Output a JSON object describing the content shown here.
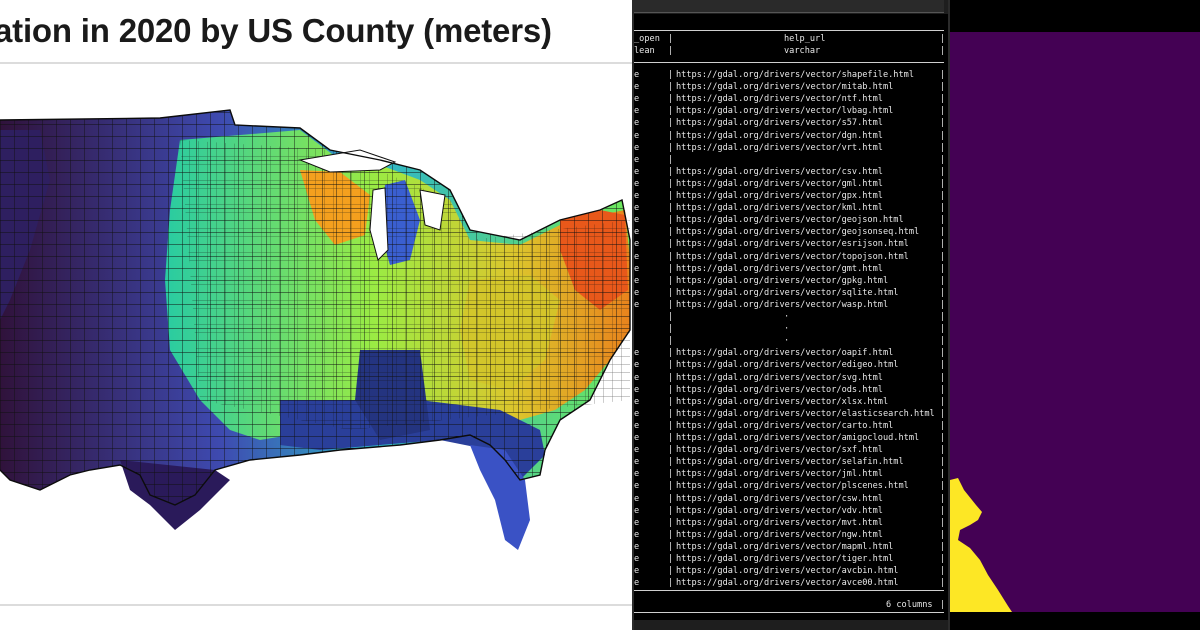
{
  "map": {
    "title": "ation in 2020 by US County (meters)"
  },
  "terminal": {
    "header_col1_line1": "_open",
    "header_col1_line2": "lean",
    "header_col2_line1": "help_url",
    "header_col2_line2": "varchar",
    "rows": [
      {
        "flag": "e",
        "url": "https://gdal.org/drivers/vector/shapefile.html"
      },
      {
        "flag": "e",
        "url": "https://gdal.org/drivers/vector/mitab.html"
      },
      {
        "flag": "e",
        "url": "https://gdal.org/drivers/vector/ntf.html"
      },
      {
        "flag": "e",
        "url": "https://gdal.org/drivers/vector/lvbag.html"
      },
      {
        "flag": "e",
        "url": "https://gdal.org/drivers/vector/s57.html"
      },
      {
        "flag": "e",
        "url": "https://gdal.org/drivers/vector/dgn.html"
      },
      {
        "flag": "e",
        "url": "https://gdal.org/drivers/vector/vrt.html"
      },
      {
        "flag": "e",
        "url": ""
      },
      {
        "flag": "e",
        "url": "https://gdal.org/drivers/vector/csv.html"
      },
      {
        "flag": "e",
        "url": "https://gdal.org/drivers/vector/gml.html"
      },
      {
        "flag": "e",
        "url": "https://gdal.org/drivers/vector/gpx.html"
      },
      {
        "flag": "e",
        "url": "https://gdal.org/drivers/vector/kml.html"
      },
      {
        "flag": "e",
        "url": "https://gdal.org/drivers/vector/geojson.html"
      },
      {
        "flag": "e",
        "url": "https://gdal.org/drivers/vector/geojsonseq.html"
      },
      {
        "flag": "e",
        "url": "https://gdal.org/drivers/vector/esrijson.html"
      },
      {
        "flag": "e",
        "url": "https://gdal.org/drivers/vector/topojson.html"
      },
      {
        "flag": "e",
        "url": "https://gdal.org/drivers/vector/gmt.html"
      },
      {
        "flag": "e",
        "url": "https://gdal.org/drivers/vector/gpkg.html"
      },
      {
        "flag": "e",
        "url": "https://gdal.org/drivers/vector/sqlite.html"
      },
      {
        "flag": "e",
        "url": "https://gdal.org/drivers/vector/wasp.html"
      },
      {
        "flag": "",
        "url": "·"
      },
      {
        "flag": "",
        "url": "·"
      },
      {
        "flag": "",
        "url": "·"
      },
      {
        "flag": "e",
        "url": "https://gdal.org/drivers/vector/oapif.html"
      },
      {
        "flag": "e",
        "url": "https://gdal.org/drivers/vector/edigeo.html"
      },
      {
        "flag": "e",
        "url": "https://gdal.org/drivers/vector/svg.html"
      },
      {
        "flag": "e",
        "url": "https://gdal.org/drivers/vector/ods.html"
      },
      {
        "flag": "e",
        "url": "https://gdal.org/drivers/vector/xlsx.html"
      },
      {
        "flag": "e",
        "url": "https://gdal.org/drivers/vector/elasticsearch.html"
      },
      {
        "flag": "e",
        "url": "https://gdal.org/drivers/vector/carto.html"
      },
      {
        "flag": "e",
        "url": "https://gdal.org/drivers/vector/amigocloud.html"
      },
      {
        "flag": "e",
        "url": "https://gdal.org/drivers/vector/sxf.html"
      },
      {
        "flag": "e",
        "url": "https://gdal.org/drivers/vector/selafin.html"
      },
      {
        "flag": "e",
        "url": "https://gdal.org/drivers/vector/jml.html"
      },
      {
        "flag": "e",
        "url": "https://gdal.org/drivers/vector/plscenes.html"
      },
      {
        "flag": "e",
        "url": "https://gdal.org/drivers/vector/csw.html"
      },
      {
        "flag": "e",
        "url": "https://gdal.org/drivers/vector/vdv.html"
      },
      {
        "flag": "e",
        "url": "https://gdal.org/drivers/vector/mvt.html"
      },
      {
        "flag": "e",
        "url": "https://gdal.org/drivers/vector/ngw.html"
      },
      {
        "flag": "e",
        "url": "https://gdal.org/drivers/vector/mapml.html"
      },
      {
        "flag": "e",
        "url": "https://gdal.org/drivers/vector/tiger.html"
      },
      {
        "flag": "e",
        "url": "https://gdal.org/drivers/vector/avcbin.html"
      },
      {
        "flag": "e",
        "url": "https://gdal.org/drivers/vector/avce00.html"
      }
    ],
    "footer": "6 columns"
  },
  "colors": {
    "terminal_bg": "#000000",
    "terminal_text": "#e8e8e8",
    "purple": "#440154",
    "yellow": "#fde725"
  }
}
